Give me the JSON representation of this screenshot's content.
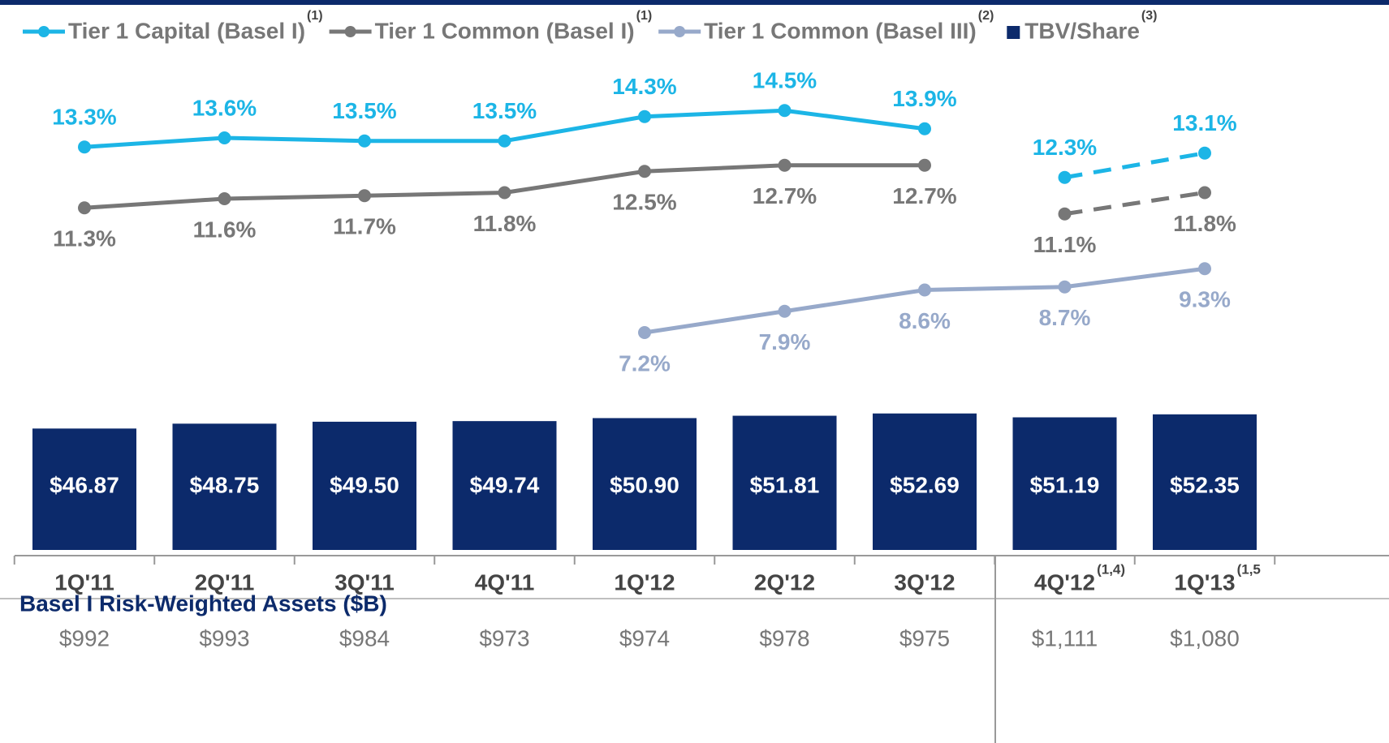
{
  "chart_data": {
    "type": "combo",
    "categories": [
      "1Q'11",
      "2Q'11",
      "3Q'11",
      "4Q'11",
      "1Q'12",
      "2Q'12",
      "3Q'12",
      "4Q'12",
      "1Q'13"
    ],
    "category_notes": [
      null,
      null,
      null,
      null,
      null,
      null,
      null,
      "(1,4)",
      "(1,5"
    ],
    "series": [
      {
        "name": "Tier 1 Capital (Basel I)",
        "note": "(1)",
        "kind": "line",
        "axis": "y2",
        "color": "#1cb5e6",
        "dashed_from": 7,
        "label_side": "above",
        "values": [
          13.3,
          13.6,
          13.5,
          13.5,
          14.3,
          14.5,
          13.9,
          12.3,
          13.1
        ],
        "value_labels": [
          "13.3%",
          "13.6%",
          "13.5%",
          "13.5%",
          "14.3%",
          "14.5%",
          "13.9%",
          "12.3%",
          "13.1%"
        ]
      },
      {
        "name": "Tier 1 Common (Basel I)",
        "note": "(1)",
        "kind": "line",
        "axis": "y2",
        "color": "#777777",
        "dashed_from": 7,
        "label_side": "below",
        "values": [
          11.3,
          11.6,
          11.7,
          11.8,
          12.5,
          12.7,
          12.7,
          11.1,
          11.8
        ],
        "value_labels": [
          "11.3%",
          "11.6%",
          "11.7%",
          "11.8%",
          "12.5%",
          "12.7%",
          "12.7%",
          "11.1%",
          "11.8%"
        ]
      },
      {
        "name": "Tier 1 Common (Basel III)",
        "note": "(2)",
        "kind": "line",
        "axis": "y2",
        "color": "#97a9ca",
        "label_side": "below",
        "values": [
          null,
          null,
          null,
          null,
          7.2,
          7.9,
          8.6,
          8.7,
          9.3
        ],
        "value_labels": [
          null,
          null,
          null,
          null,
          "7.2%",
          "7.9%",
          "8.6%",
          "8.7%",
          "9.3%"
        ]
      },
      {
        "name": "TBV/Share",
        "note": "(3)",
        "kind": "bar",
        "color": "#0c2a6b",
        "values": [
          46.87,
          48.75,
          49.5,
          49.74,
          50.9,
          51.81,
          52.69,
          51.19,
          52.35
        ],
        "value_labels": [
          "$46.87",
          "$48.75",
          "$49.50",
          "$49.74",
          "$50.90",
          "$51.81",
          "$52.69",
          "$51.19",
          "$52.35"
        ]
      }
    ],
    "ylim": [
      0,
      62
    ],
    "y2lim": [
      6,
      16
    ],
    "table": {
      "title": "Basel I Risk-Weighted Assets ($B)",
      "values": [
        992,
        993,
        984,
        973,
        974,
        978,
        975,
        1111,
        1080
      ],
      "value_labels": [
        "$992",
        "$993",
        "$984",
        "$973",
        "$974",
        "$978",
        "$975",
        "$1,111",
        "$1,080"
      ]
    }
  }
}
